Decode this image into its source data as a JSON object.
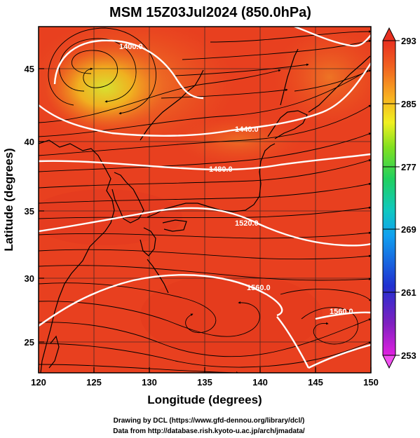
{
  "title": "MSM 15Z03Jul2024 (850.0hPa)",
  "xlabel": "Longitude (degrees)",
  "ylabel": "Latitude  (degrees)",
  "credits": {
    "line1": "Drawing by DCL (https://www.gfd-dennou.org/library/dcl/)",
    "line2": "Data from http://database.rish.kyoto-u.ac.jp/arch/jmadata/"
  },
  "map": {
    "lon_range": [
      120,
      150
    ],
    "lat_range": [
      22.5,
      47.5
    ],
    "x_ticks": [
      "120",
      "125",
      "130",
      "135",
      "140",
      "145",
      "150"
    ],
    "y_ticks": [
      "25",
      "30",
      "35",
      "40",
      "45"
    ],
    "grid": true
  },
  "colorbar": {
    "min": 253,
    "max": 293,
    "ticks": [
      "293",
      "285",
      "277",
      "269",
      "261",
      "253"
    ],
    "colors": [
      "#e020e0",
      "#8020c0",
      "#2030d0",
      "#1080f0",
      "#10c8e8",
      "#20d080",
      "#40e020",
      "#c8f020",
      "#f8e020",
      "#f8a020",
      "#f06020",
      "#e83020"
    ]
  },
  "contours": [
    {
      "label": "1400.0"
    },
    {
      "label": "1440.0"
    },
    {
      "label": "1480.0"
    },
    {
      "label": "1520.0"
    },
    {
      "label": "1560.0"
    },
    {
      "label": "1560.0"
    }
  ]
}
